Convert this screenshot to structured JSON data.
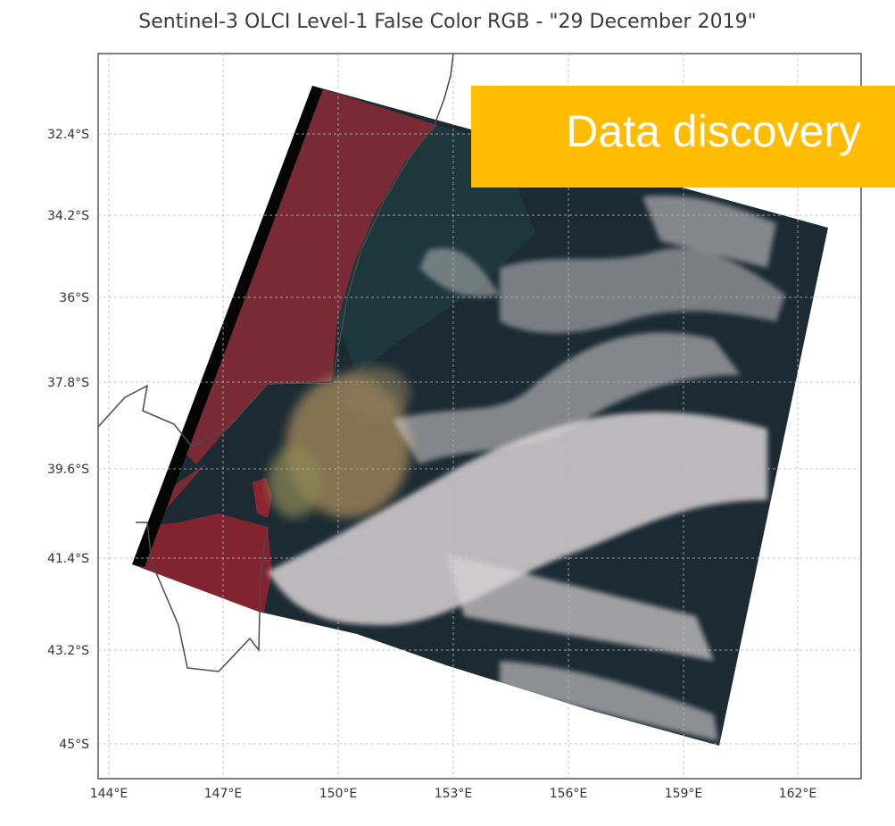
{
  "title": "Sentinel-3 OLCI Level-1 False Color RGB - \"29 December 2019\"",
  "badge": {
    "label": "Data discovery",
    "color": "#FFBC00"
  },
  "axes": {
    "lat_ticks": [
      "32.4°S",
      "34.2°S",
      "36°S",
      "37.8°S",
      "39.6°S",
      "41.4°S",
      "43.2°S",
      "45°S"
    ],
    "lon_ticks": [
      "144°E",
      "147°E",
      "150°E",
      "153°E",
      "156°E",
      "159°E",
      "162°E"
    ],
    "grid": true
  },
  "imagery": {
    "land_color": "#7a2a35",
    "ocean_color": "#16232c",
    "smoke_color": "#a88a5c",
    "cloud_color": "#d8d2d4"
  }
}
